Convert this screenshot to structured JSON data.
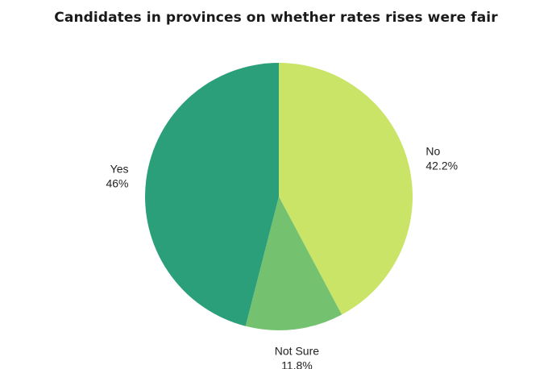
{
  "chart_data": {
    "type": "pie",
    "title": "Candidates in provinces on whether rates rises were fair",
    "legend": "none",
    "slices": [
      {
        "label": "No",
        "value": 42.2,
        "display": "42.2%",
        "color": "#c9e467"
      },
      {
        "label": "Not Sure",
        "value": 11.8,
        "display": "11.8%",
        "color": "#74c26f"
      },
      {
        "label": "Yes",
        "value": 46,
        "display": "46%",
        "color": "#2a9f79"
      }
    ]
  }
}
